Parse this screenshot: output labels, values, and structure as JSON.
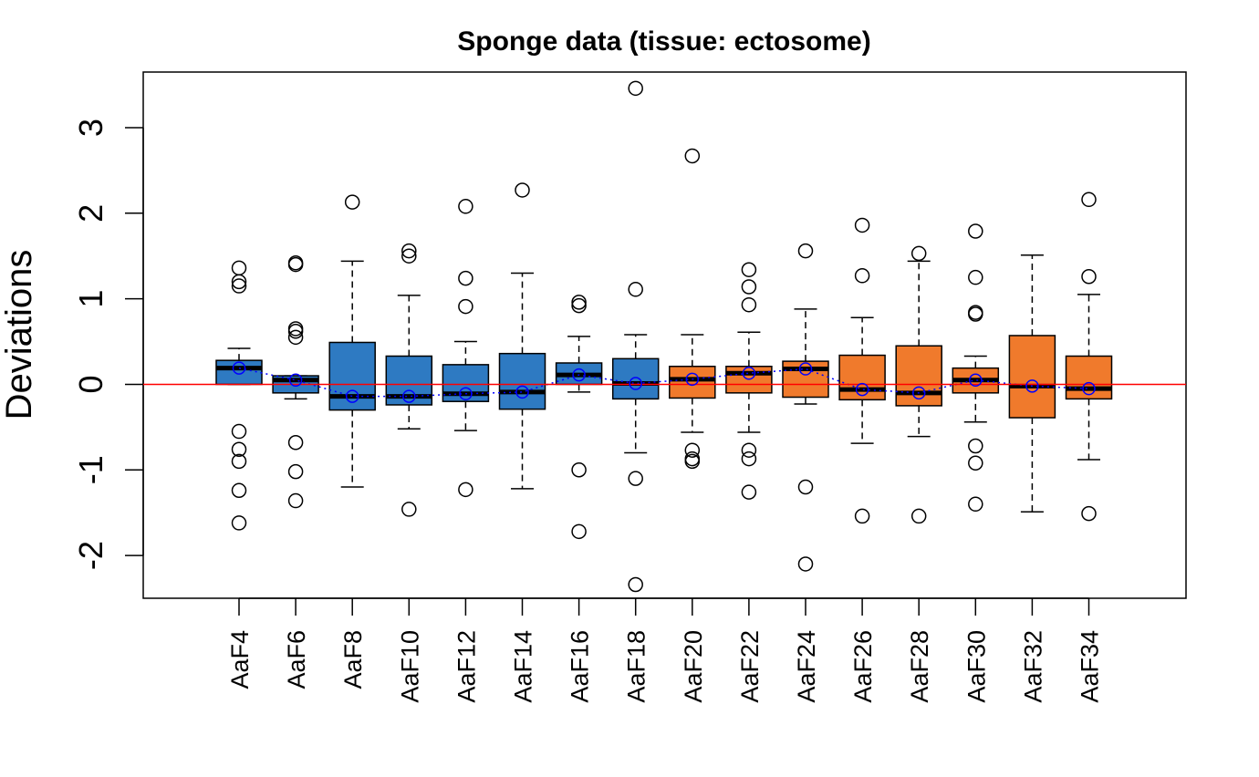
{
  "chart_data": {
    "type": "boxplot",
    "title": "Sponge data (tissue: ectosome)",
    "xlabel": "",
    "ylabel": "Deviations",
    "ylim": [
      -2.5,
      3.65
    ],
    "yticks": [
      -2,
      -1,
      0,
      1,
      2,
      3
    ],
    "ytick_labels": [
      "-2",
      "-1",
      "0",
      "1",
      "2",
      "3"
    ],
    "reference_line": 0,
    "grid": false,
    "colors": {
      "group1": "#2E7AC2",
      "group2": "#F07A2C",
      "mean_line": "#0000FF",
      "reference_line": "#FF0000",
      "median": "#000000",
      "outline": "#000000"
    },
    "categories": [
      "AaF4",
      "AaF6",
      "AaF8",
      "AaF10",
      "AaF12",
      "AaF14",
      "AaF16",
      "AaF18",
      "AaF20",
      "AaF22",
      "AaF24",
      "AaF26",
      "AaF28",
      "AaF30",
      "AaF32",
      "AaF34"
    ],
    "boxes": [
      {
        "name": "AaF4",
        "group": 1,
        "whisker_low": 0.0,
        "q1": 0.0,
        "median": 0.19,
        "q3": 0.28,
        "whisker_high": 0.42,
        "mean": 0.19,
        "outliers": [
          1.36,
          1.2,
          1.15,
          -0.55,
          -0.76,
          -0.9,
          -1.24,
          -1.62
        ]
      },
      {
        "name": "AaF6",
        "group": 1,
        "whisker_low": -0.17,
        "q1": -0.1,
        "median": 0.05,
        "q3": 0.1,
        "whisker_high": 0.1,
        "mean": 0.05,
        "outliers": [
          1.42,
          1.4,
          0.65,
          0.62,
          0.55,
          -0.68,
          -1.02,
          -1.36
        ]
      },
      {
        "name": "AaF8",
        "group": 1,
        "whisker_low": -1.2,
        "q1": -0.3,
        "median": -0.14,
        "q3": 0.49,
        "whisker_high": 1.44,
        "mean": -0.14,
        "outliers": [
          2.13
        ]
      },
      {
        "name": "AaF10",
        "group": 1,
        "whisker_low": -0.52,
        "q1": -0.24,
        "median": -0.14,
        "q3": 0.33,
        "whisker_high": 1.04,
        "mean": -0.14,
        "outliers": [
          1.56,
          1.5,
          -1.46
        ]
      },
      {
        "name": "AaF12",
        "group": 1,
        "whisker_low": -0.54,
        "q1": -0.2,
        "median": -0.11,
        "q3": 0.23,
        "whisker_high": 0.5,
        "mean": -0.11,
        "outliers": [
          2.08,
          1.24,
          0.91,
          -1.23
        ]
      },
      {
        "name": "AaF14",
        "group": 1,
        "whisker_low": -1.22,
        "q1": -0.29,
        "median": -0.09,
        "q3": 0.36,
        "whisker_high": 1.3,
        "mean": -0.09,
        "outliers": [
          2.27
        ]
      },
      {
        "name": "AaF16",
        "group": 1,
        "whisker_low": -0.09,
        "q1": 0.0,
        "median": 0.11,
        "q3": 0.25,
        "whisker_high": 0.56,
        "mean": 0.11,
        "outliers": [
          0.96,
          0.92,
          -1.0,
          -1.72
        ]
      },
      {
        "name": "AaF18",
        "group": 1,
        "whisker_low": -0.8,
        "q1": -0.17,
        "median": 0.01,
        "q3": 0.3,
        "whisker_high": 0.58,
        "mean": 0.01,
        "outliers": [
          3.46,
          1.11,
          -1.1,
          -2.34
        ]
      },
      {
        "name": "AaF20",
        "group": 2,
        "whisker_low": -0.56,
        "q1": -0.16,
        "median": 0.06,
        "q3": 0.21,
        "whisker_high": 0.58,
        "mean": 0.06,
        "outliers": [
          2.67,
          -0.77,
          -0.87,
          -0.9
        ]
      },
      {
        "name": "AaF22",
        "group": 2,
        "whisker_low": -0.56,
        "q1": -0.1,
        "median": 0.13,
        "q3": 0.21,
        "whisker_high": 0.61,
        "mean": 0.13,
        "outliers": [
          1.34,
          1.14,
          0.93,
          -0.77,
          -0.87,
          -1.26
        ]
      },
      {
        "name": "AaF24",
        "group": 2,
        "whisker_low": -0.23,
        "q1": -0.15,
        "median": 0.18,
        "q3": 0.27,
        "whisker_high": 0.88,
        "mean": 0.18,
        "outliers": [
          1.56,
          -1.2,
          -2.1
        ]
      },
      {
        "name": "AaF26",
        "group": 2,
        "whisker_low": -0.69,
        "q1": -0.18,
        "median": -0.06,
        "q3": 0.34,
        "whisker_high": 0.78,
        "mean": -0.06,
        "outliers": [
          1.86,
          1.27,
          -1.54
        ]
      },
      {
        "name": "AaF28",
        "group": 2,
        "whisker_low": -0.61,
        "q1": -0.25,
        "median": -0.1,
        "q3": 0.45,
        "whisker_high": 1.44,
        "mean": -0.1,
        "outliers": [
          1.53,
          -1.54
        ]
      },
      {
        "name": "AaF30",
        "group": 2,
        "whisker_low": -0.44,
        "q1": -0.1,
        "median": 0.05,
        "q3": 0.19,
        "whisker_high": 0.33,
        "mean": 0.05,
        "outliers": [
          1.79,
          1.25,
          0.84,
          0.82,
          -0.72,
          -0.92,
          -1.4
        ]
      },
      {
        "name": "AaF32",
        "group": 2,
        "whisker_low": -1.49,
        "q1": -0.39,
        "median": -0.02,
        "q3": 0.57,
        "whisker_high": 1.51,
        "mean": -0.02,
        "outliers": []
      },
      {
        "name": "AaF34",
        "group": 2,
        "whisker_low": -0.88,
        "q1": -0.17,
        "median": -0.05,
        "q3": 0.33,
        "whisker_high": 1.05,
        "mean": -0.05,
        "outliers": [
          2.16,
          1.26,
          -1.51
        ]
      }
    ]
  }
}
